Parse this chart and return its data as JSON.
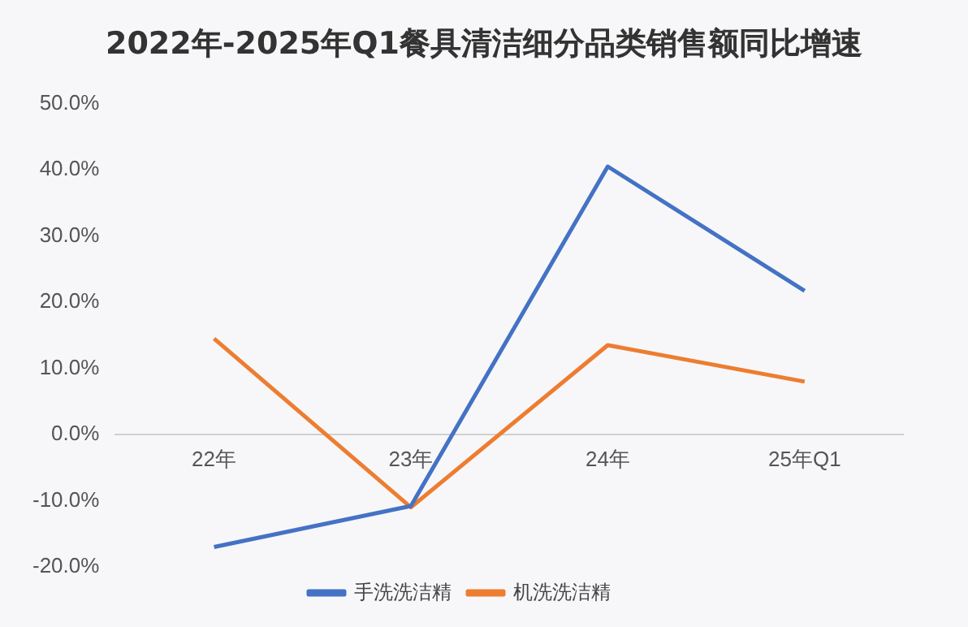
{
  "chart_data": {
    "type": "line",
    "title": "2022年-2025年Q1餐具清洁细分品类销售额同比增速",
    "categories": [
      "22年",
      "23年",
      "24年",
      "25年Q1"
    ],
    "series": [
      {
        "name": "手洗洗洁精",
        "color": "#4472c4",
        "values": [
          -17,
          -10.8,
          40.5,
          21.7
        ]
      },
      {
        "name": "机洗洗洁精",
        "color": "#ed7d31",
        "values": [
          14.5,
          -11,
          13.5,
          8
        ]
      }
    ],
    "ylim": [
      -20,
      50
    ],
    "yticks": [
      {
        "value": -20,
        "label": "-20.0%"
      },
      {
        "value": -10,
        "label": "-10.0%"
      },
      {
        "value": 0,
        "label": "0.0%"
      },
      {
        "value": 10,
        "label": "10.0%"
      },
      {
        "value": 20,
        "label": "20.0%"
      },
      {
        "value": 30,
        "label": "30.0%"
      },
      {
        "value": 40,
        "label": "40.0%"
      },
      {
        "value": 50,
        "label": "50.0%"
      }
    ],
    "grid": false,
    "legend": "bottom",
    "marker": "none",
    "line_style": "solid"
  }
}
